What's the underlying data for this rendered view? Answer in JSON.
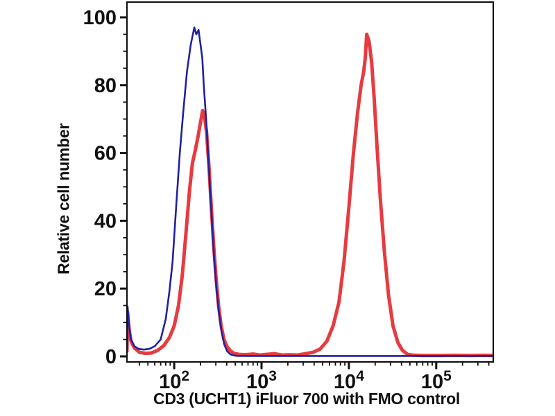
{
  "figure": {
    "background": "#ffffff",
    "frame_color": "#111111",
    "tick_color": "#111111"
  },
  "chart_data": {
    "type": "line",
    "subtype": "flow-cytometry-histogram-overlay",
    "title": "",
    "xlabel": "CD3 (UCHT1) iFluor 700 with FMO control",
    "ylabel": "Relative cell number",
    "x_scale": "log",
    "x_range": [
      28.8,
      450000
    ],
    "y_range": [
      0,
      100
    ],
    "x_tick_base": "10",
    "x_tick_exponents": [
      2,
      3,
      4,
      5
    ],
    "x_minor_ticks": "2-9 per decade (log)",
    "y_ticks": [
      0,
      20,
      40,
      60,
      80,
      100
    ],
    "y_minor_step": 5,
    "grid": false,
    "legend": "none",
    "series": [
      {
        "id": "red-curve",
        "name": "CD3 (UCHT1) iFluor 700 stained (red, thick)",
        "color": "#e63b40",
        "width": 5,
        "points": [
          [
            28.8,
            1.5
          ],
          [
            29.3,
            13
          ],
          [
            30.5,
            8
          ],
          [
            32,
            4.5
          ],
          [
            35,
            2.5
          ],
          [
            40,
            1.2
          ],
          [
            47,
            0.9
          ],
          [
            55,
            1.0
          ],
          [
            65,
            1.8
          ],
          [
            76,
            3.2
          ],
          [
            88,
            5.5
          ],
          [
            100,
            9
          ],
          [
            112,
            15
          ],
          [
            124,
            24
          ],
          [
            136,
            36
          ],
          [
            150,
            49
          ],
          [
            162,
            57
          ],
          [
            175,
            61
          ],
          [
            188,
            65
          ],
          [
            200,
            69
          ],
          [
            212,
            72.5
          ],
          [
            222,
            71
          ],
          [
            235,
            66
          ],
          [
            250,
            56
          ],
          [
            265,
            45
          ],
          [
            283,
            33
          ],
          [
            302,
            23
          ],
          [
            322,
            15
          ],
          [
            345,
            9
          ],
          [
            372,
            5
          ],
          [
            400,
            3
          ],
          [
            435,
            1.8
          ],
          [
            480,
            0.9
          ],
          [
            550,
            0.6
          ],
          [
            650,
            0.5
          ],
          [
            800,
            0.7
          ],
          [
            950,
            0.4
          ],
          [
            1150,
            0.6
          ],
          [
            1400,
            0.8
          ],
          [
            1700,
            0.4
          ],
          [
            2100,
            0.5
          ],
          [
            2600,
            0.4
          ],
          [
            3200,
            0.8
          ],
          [
            3900,
            1.2
          ],
          [
            4700,
            2.2
          ],
          [
            5600,
            4.5
          ],
          [
            6600,
            9
          ],
          [
            7700,
            16
          ],
          [
            8800,
            28
          ],
          [
            10000,
            44
          ],
          [
            11300,
            60
          ],
          [
            12600,
            72
          ],
          [
            13800,
            80
          ],
          [
            14800,
            84
          ],
          [
            15400,
            88
          ],
          [
            16000,
            95
          ],
          [
            17000,
            93
          ],
          [
            18200,
            87
          ],
          [
            19500,
            76
          ],
          [
            21000,
            62
          ],
          [
            23000,
            46
          ],
          [
            25500,
            31
          ],
          [
            28500,
            18
          ],
          [
            32000,
            9
          ],
          [
            36500,
            4
          ],
          [
            41000,
            1.8
          ],
          [
            47000,
            0.6
          ],
          [
            55000,
            0.35
          ],
          [
            70000,
            0.25
          ],
          [
            100000,
            0.25
          ],
          [
            160000,
            0.3
          ],
          [
            250000,
            0.25
          ],
          [
            350000,
            0.3
          ],
          [
            450000,
            0.25
          ]
        ]
      },
      {
        "id": "blue-curve",
        "name": "FMO control (blue, thin)",
        "color": "#22219b",
        "width": 2.6,
        "points": [
          [
            28.8,
            2
          ],
          [
            29.3,
            14.7
          ],
          [
            30.5,
            9
          ],
          [
            32,
            5
          ],
          [
            35,
            3
          ],
          [
            39,
            2.2
          ],
          [
            45,
            2.0
          ],
          [
            52,
            2.2
          ],
          [
            60,
            3
          ],
          [
            70,
            5
          ],
          [
            80,
            11
          ],
          [
            88,
            19
          ],
          [
            96,
            28
          ],
          [
            106,
            45
          ],
          [
            116,
            60
          ],
          [
            127,
            72
          ],
          [
            140,
            84
          ],
          [
            155,
            92
          ],
          [
            170,
            97
          ],
          [
            179,
            95
          ],
          [
            190,
            96.3
          ],
          [
            200,
            92
          ],
          [
            210,
            88
          ],
          [
            218,
            80
          ],
          [
            232,
            70
          ],
          [
            248,
            57
          ],
          [
            265,
            44
          ],
          [
            285,
            30
          ],
          [
            305,
            20
          ],
          [
            325,
            13
          ],
          [
            350,
            7
          ],
          [
            375,
            3.5
          ],
          [
            405,
            1.5
          ],
          [
            440,
            0.6
          ],
          [
            490,
            0.25
          ],
          [
            530,
            0.15
          ],
          [
            700,
            0.12
          ],
          [
            1200,
            0.12
          ],
          [
            3000,
            0.12
          ],
          [
            8000,
            0.12
          ],
          [
            20000,
            0.12
          ],
          [
            60000,
            0.12
          ],
          [
            150000,
            0.12
          ],
          [
            300000,
            0.12
          ],
          [
            450000,
            0.12
          ]
        ]
      }
    ]
  }
}
